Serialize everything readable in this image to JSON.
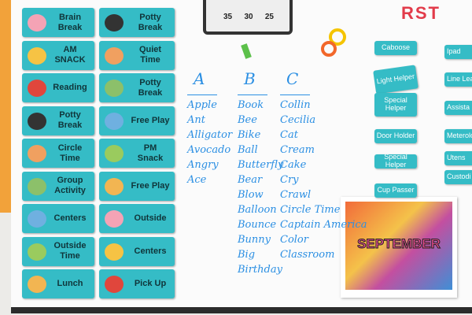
{
  "schedule": {
    "column1": [
      "Brain Break",
      "AM SNACK",
      "Reading",
      "Potty Break",
      "Circle Time",
      "Group Activity",
      "Centers",
      "Outside Time",
      "Lunch"
    ],
    "column2": [
      "Potty Break",
      "Quiet Time",
      "Potty Break",
      "Free Play",
      "PM Snack",
      "Free Play",
      "Outside",
      "Centers",
      "Pick Up"
    ]
  },
  "board": {
    "columns": [
      {
        "letter": "A",
        "words": [
          "Apple",
          "Ant",
          "Alligator",
          "Avocado",
          "Angry",
          "Ace"
        ]
      },
      {
        "letter": "B",
        "words": [
          "Book",
          "Bee",
          "Bike",
          "Ball",
          "Butterfly",
          "Bear",
          "Blow",
          "Balloon",
          "Bounce",
          "Bunny",
          "Big",
          "Birthday"
        ]
      },
      {
        "letter": "C",
        "words": [
          "Collin",
          "Cecilia",
          "Cat",
          "Cream",
          "Cake",
          "Cry",
          "Crawl",
          "Circle Time",
          "Captain America",
          "Color",
          "Classroom"
        ]
      }
    ]
  },
  "magnets": {
    "letters": "RST"
  },
  "timer": {
    "numbers": [
      "35",
      "30",
      "25"
    ]
  },
  "jobs": {
    "left": [
      "Caboose",
      "Light Helper",
      "Special Helper",
      "Door Holder",
      "Special Helper",
      "Cup Passer"
    ],
    "right": [
      "Ipad",
      "Line Lea",
      "Assista",
      "Meterolo",
      "Utens",
      "Custodi"
    ]
  },
  "poster": {
    "title": "SEPTEMBER"
  }
}
